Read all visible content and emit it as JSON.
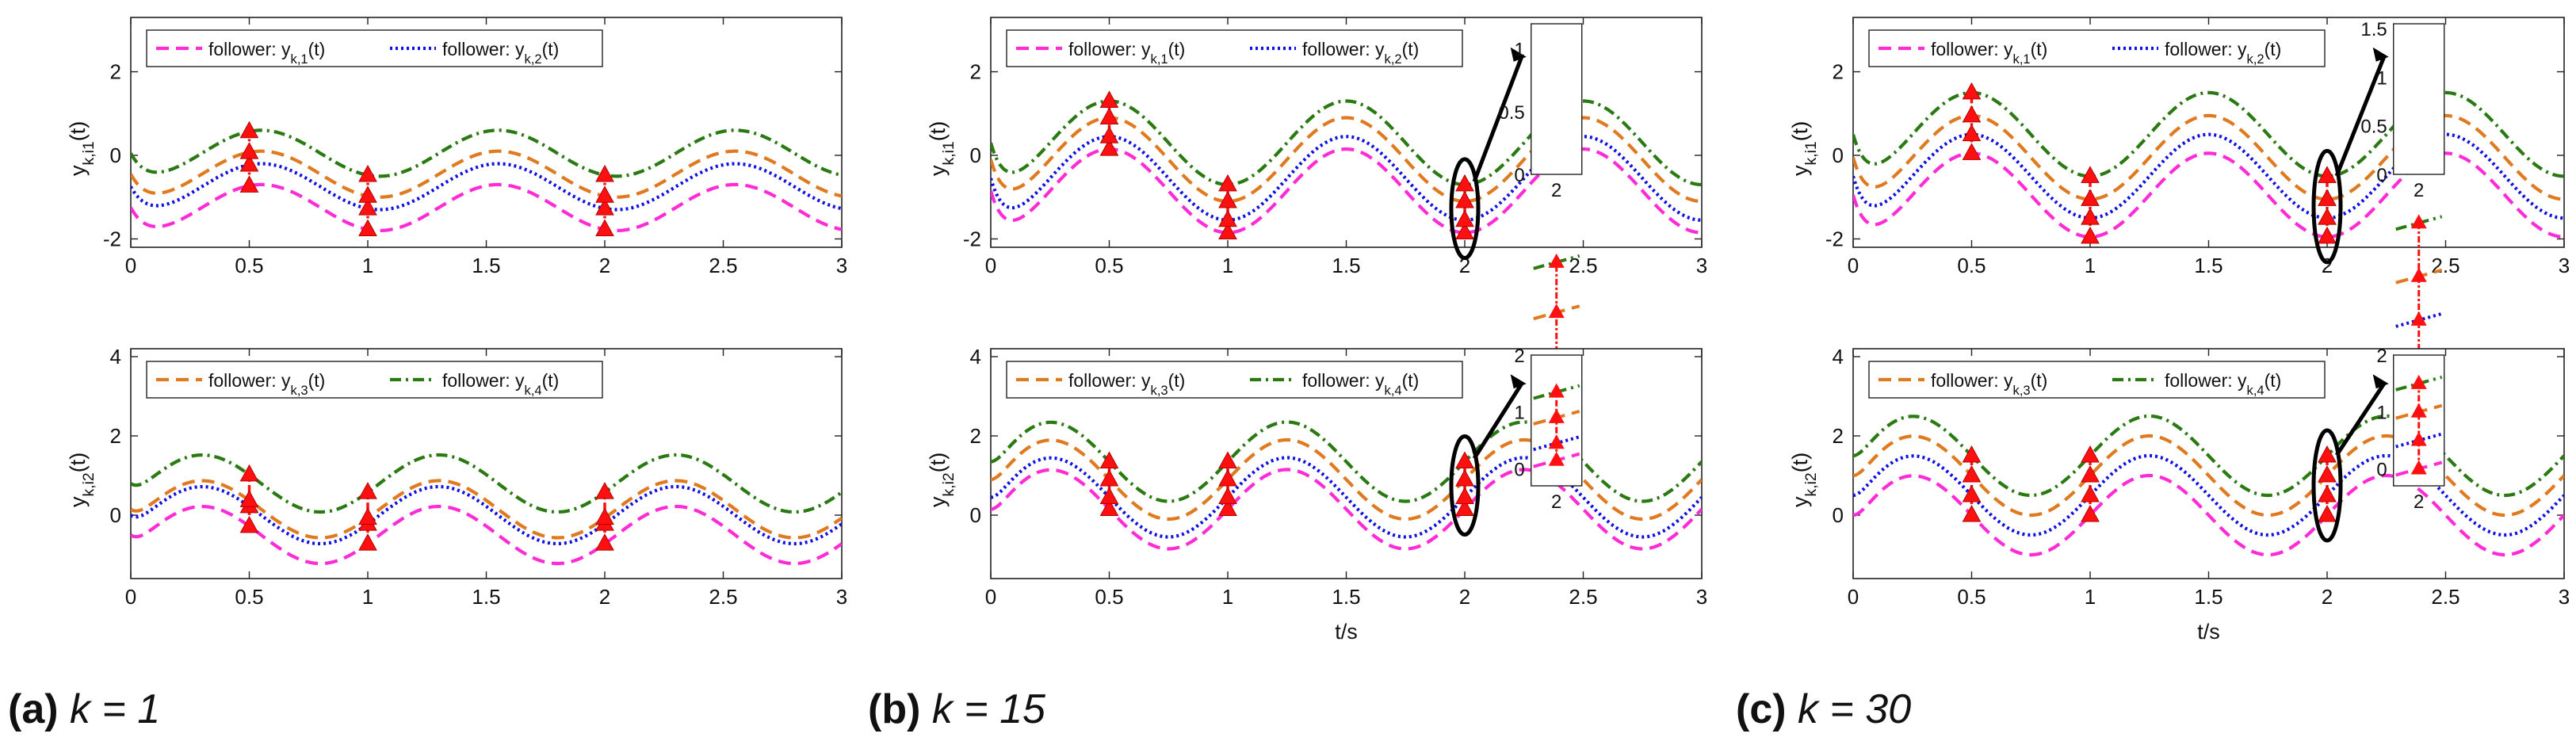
{
  "colors": {
    "y1": "#ff2bd6",
    "y2": "#1010e0",
    "y3": "#e07a20",
    "y4": "#2a7a12",
    "marker": "#ff1010",
    "axis": "#222222",
    "grid": "#dddddd"
  },
  "captions": [
    {
      "label": "(a)",
      "math": "k = 1"
    },
    {
      "label": "(b)",
      "math": "k = 15"
    },
    {
      "label": "(c)",
      "math": "k = 30"
    }
  ],
  "chart_data": [
    {
      "type": "line",
      "panel": "k1-top",
      "k": 1,
      "xlabel": "",
      "ylabel": "y_k,i1(t)",
      "xlim": [
        0,
        3
      ],
      "ylim": [
        -2.2,
        3.3
      ],
      "xticks": [
        "0",
        "0.5",
        "1",
        "1.5",
        "2",
        "2.5",
        "3"
      ],
      "yticks": [
        "-2",
        "0",
        "2"
      ],
      "legend": {
        "position": "top-left",
        "entries": [
          "follower: y_k,1(t)",
          "follower: y_k,2(t)"
        ]
      },
      "series": [
        {
          "name": "y_k,1(t)",
          "style": "dashed",
          "amp": 0.55,
          "offset": -1.25,
          "phase": 0.3
        },
        {
          "name": "y_k,2(t)",
          "style": "dotted",
          "amp": 0.55,
          "offset": -0.75,
          "phase": 0.3
        },
        {
          "name": "y_k,3(t)",
          "style": "dashed",
          "amp": 0.55,
          "offset": -0.45,
          "phase": 0.3
        },
        {
          "name": "y_k,4(t)",
          "style": "dashdot",
          "amp": 0.55,
          "offset": 0.05,
          "phase": 0.3
        }
      ],
      "markers_x": [
        0.5,
        1,
        2
      ],
      "zoom": null
    },
    {
      "type": "line",
      "panel": "k1-bottom",
      "k": 1,
      "xlabel": "",
      "ylabel": "y_k,i2(t)",
      "xlim": [
        0,
        3
      ],
      "ylim": [
        -1.6,
        4.2
      ],
      "xticks": [
        "0",
        "0.5",
        "1",
        "1.5",
        "2",
        "2.5",
        "3"
      ],
      "yticks": [
        "0",
        "2",
        "4"
      ],
      "legend": {
        "position": "top-left",
        "entries": [
          "follower: y_k,3(t)",
          "follower: y_k,4(t)"
        ]
      },
      "series": [
        {
          "name": "y_k,1(t)",
          "style": "dashed",
          "amp": 0.72,
          "offset": -0.5,
          "phase": 0.05
        },
        {
          "name": "y_k,2(t)",
          "style": "dotted",
          "amp": 0.72,
          "offset": 0.0,
          "phase": 0.05
        },
        {
          "name": "y_k,3(t)",
          "style": "dashed",
          "amp": 0.72,
          "offset": 0.15,
          "phase": 0.05
        },
        {
          "name": "y_k,4(t)",
          "style": "dashdot",
          "amp": 0.72,
          "offset": 0.8,
          "phase": 0.05
        }
      ],
      "markers_x": [
        0.5,
        1,
        2
      ],
      "zoom": null
    },
    {
      "type": "line",
      "panel": "k15-top",
      "k": 15,
      "xlabel": "",
      "ylabel": "y_k,i1(t)",
      "xlim": [
        0,
        3
      ],
      "ylim": [
        -2.2,
        3.3
      ],
      "xticks": [
        "0",
        "0.5",
        "1",
        "1.5",
        "2",
        "2.5",
        "3"
      ],
      "yticks": [
        "-2",
        "0",
        "2"
      ],
      "legend": {
        "position": "top-left",
        "entries": [
          "follower: y_k,1(t)",
          "follower: y_k,2(t)"
        ]
      },
      "series": [
        {
          "name": "y_k,1(t)",
          "style": "dashed",
          "amp": 1.0,
          "offset": -0.85,
          "phase": 0.25
        },
        {
          "name": "y_k,2(t)",
          "style": "dotted",
          "amp": 1.0,
          "offset": -0.55,
          "phase": 0.25
        },
        {
          "name": "y_k,3(t)",
          "style": "dashed",
          "amp": 1.0,
          "offset": -0.1,
          "phase": 0.25
        },
        {
          "name": "y_k,4(t)",
          "style": "dashdot",
          "amp": 1.0,
          "offset": 0.3,
          "phase": 0.25
        }
      ],
      "markers_x": [
        0.5,
        1,
        2
      ],
      "zoom": {
        "x": 2,
        "ylim": [
          0,
          1.2
        ],
        "yticks": [
          "0",
          "0.5",
          "1"
        ],
        "xtick": "2"
      }
    },
    {
      "type": "line",
      "panel": "k15-bottom",
      "k": 15,
      "xlabel": "t/s",
      "ylabel": "y_k,i2(t)",
      "xlim": [
        0,
        3
      ],
      "ylim": [
        -1.6,
        4.2
      ],
      "xticks": [
        "0",
        "0.5",
        "1",
        "1.5",
        "2",
        "2.5",
        "3"
      ],
      "yticks": [
        "0",
        "2",
        "4"
      ],
      "legend": {
        "position": "top-left",
        "entries": [
          "follower: y_k,3(t)",
          "follower: y_k,4(t)"
        ]
      },
      "series": [
        {
          "name": "y_k,1(t)",
          "style": "dashed",
          "amp": 1.0,
          "offset": 0.15,
          "phase": 0.0
        },
        {
          "name": "y_k,2(t)",
          "style": "dotted",
          "amp": 1.0,
          "offset": 0.45,
          "phase": 0.0
        },
        {
          "name": "y_k,3(t)",
          "style": "dashed",
          "amp": 1.0,
          "offset": 0.9,
          "phase": 0.0
        },
        {
          "name": "y_k,4(t)",
          "style": "dashdot",
          "amp": 1.0,
          "offset": 1.35,
          "phase": 0.0
        }
      ],
      "markers_x": [
        0.5,
        1,
        2
      ],
      "zoom": {
        "x": 2,
        "ylim": [
          -0.3,
          2
        ],
        "yticks": [
          "0",
          "1",
          "2"
        ],
        "xtick": "2"
      }
    },
    {
      "type": "line",
      "panel": "k30-top",
      "k": 30,
      "xlabel": "",
      "ylabel": "y_k,i1(t)",
      "xlim": [
        0,
        3
      ],
      "ylim": [
        -2.2,
        3.3
      ],
      "xticks": [
        "0",
        "0.5",
        "1",
        "1.5",
        "2",
        "2.5",
        "3"
      ],
      "yticks": [
        "-2",
        "0",
        "2"
      ],
      "legend": {
        "position": "top-left",
        "entries": [
          "follower: y_k,1(t)",
          "follower: y_k,2(t)"
        ]
      },
      "series": [
        {
          "name": "y_k,1(t)",
          "style": "dashed",
          "amp": 1.0,
          "offset": -0.95,
          "phase": 0.25
        },
        {
          "name": "y_k,2(t)",
          "style": "dotted",
          "amp": 1.0,
          "offset": -0.5,
          "phase": 0.25
        },
        {
          "name": "y_k,3(t)",
          "style": "dashed",
          "amp": 1.0,
          "offset": -0.05,
          "phase": 0.25
        },
        {
          "name": "y_k,4(t)",
          "style": "dashdot",
          "amp": 1.0,
          "offset": 0.5,
          "phase": 0.25
        }
      ],
      "markers_x": [
        0.5,
        1,
        2
      ],
      "zoom": {
        "x": 2,
        "ylim": [
          0,
          1.55
        ],
        "yticks": [
          "0",
          "0.5",
          "1",
          "1.5"
        ],
        "xtick": "2"
      }
    },
    {
      "type": "line",
      "panel": "k30-bottom",
      "k": 30,
      "xlabel": "t/s",
      "ylabel": "y_k,i2(t)",
      "xlim": [
        0,
        3
      ],
      "ylim": [
        -1.6,
        4.2
      ],
      "xticks": [
        "0",
        "0.5",
        "1",
        "1.5",
        "2",
        "2.5",
        "3"
      ],
      "yticks": [
        "0",
        "2",
        "4"
      ],
      "legend": {
        "position": "top-left",
        "entries": [
          "follower: y_k,3(t)",
          "follower: y_k,4(t)"
        ]
      },
      "series": [
        {
          "name": "y_k,1(t)",
          "style": "dashed",
          "amp": 1.0,
          "offset": 0.0,
          "phase": 0.0
        },
        {
          "name": "y_k,2(t)",
          "style": "dotted",
          "amp": 1.0,
          "offset": 0.5,
          "phase": 0.0
        },
        {
          "name": "y_k,3(t)",
          "style": "dashed",
          "amp": 1.0,
          "offset": 1.0,
          "phase": 0.0
        },
        {
          "name": "y_k,4(t)",
          "style": "dashdot",
          "amp": 1.0,
          "offset": 1.5,
          "phase": 0.0
        }
      ],
      "markers_x": [
        0.5,
        1,
        2
      ],
      "zoom": {
        "x": 2,
        "ylim": [
          -0.3,
          2
        ],
        "yticks": [
          "0",
          "1",
          "2"
        ],
        "xtick": "2"
      }
    }
  ]
}
